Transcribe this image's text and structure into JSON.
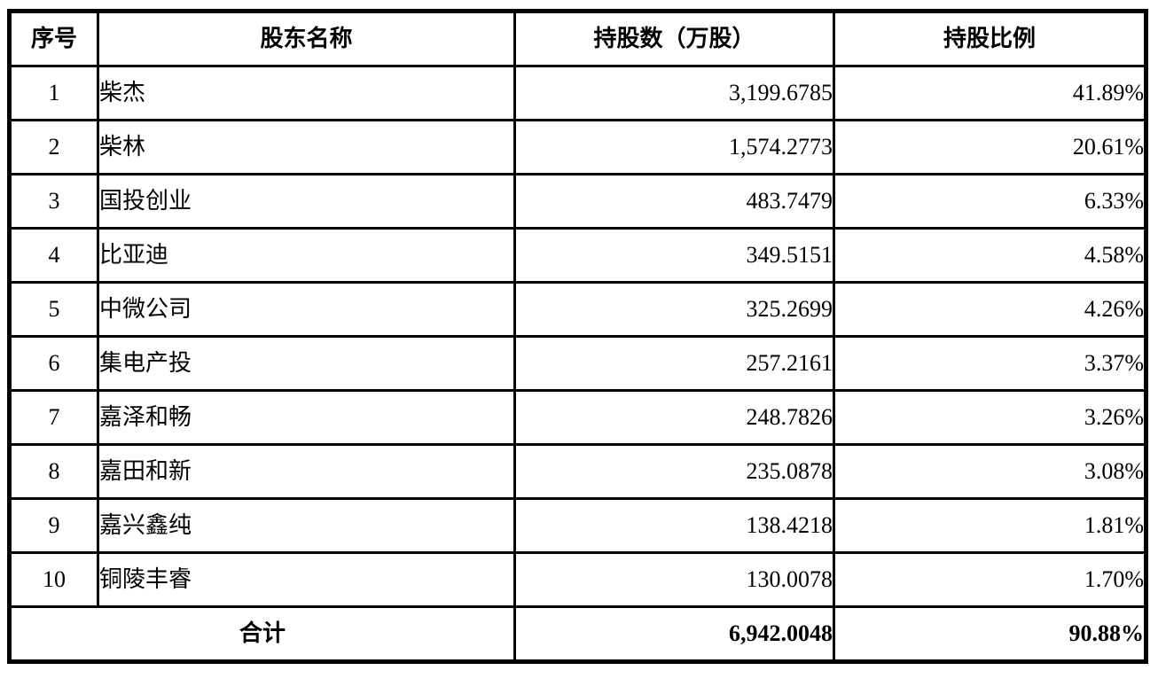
{
  "table": {
    "columns": [
      "序号",
      "股东名称",
      "持股数（万股）",
      "持股比例"
    ],
    "rows": [
      {
        "no": "1",
        "name": "柴杰",
        "shares": "3,199.6785",
        "ratio": "41.89%"
      },
      {
        "no": "2",
        "name": "柴林",
        "shares": "1,574.2773",
        "ratio": "20.61%"
      },
      {
        "no": "3",
        "name": "国投创业",
        "shares": "483.7479",
        "ratio": "6.33%"
      },
      {
        "no": "4",
        "name": "比亚迪",
        "shares": "349.5151",
        "ratio": "4.58%"
      },
      {
        "no": "5",
        "name": "中微公司",
        "shares": "325.2699",
        "ratio": "4.26%"
      },
      {
        "no": "6",
        "name": "集电产投",
        "shares": "257.2161",
        "ratio": "3.37%"
      },
      {
        "no": "7",
        "name": "嘉泽和畅",
        "shares": "248.7826",
        "ratio": "3.26%"
      },
      {
        "no": "8",
        "name": "嘉田和新",
        "shares": "235.0878",
        "ratio": "3.08%"
      },
      {
        "no": "9",
        "name": "嘉兴鑫纯",
        "shares": "138.4218",
        "ratio": "1.81%"
      },
      {
        "no": "10",
        "name": "铜陵丰睿",
        "shares": "130.0078",
        "ratio": "1.70%"
      }
    ],
    "total": {
      "label": "合计",
      "shares": "6,942.0048",
      "ratio": "90.88%"
    }
  }
}
